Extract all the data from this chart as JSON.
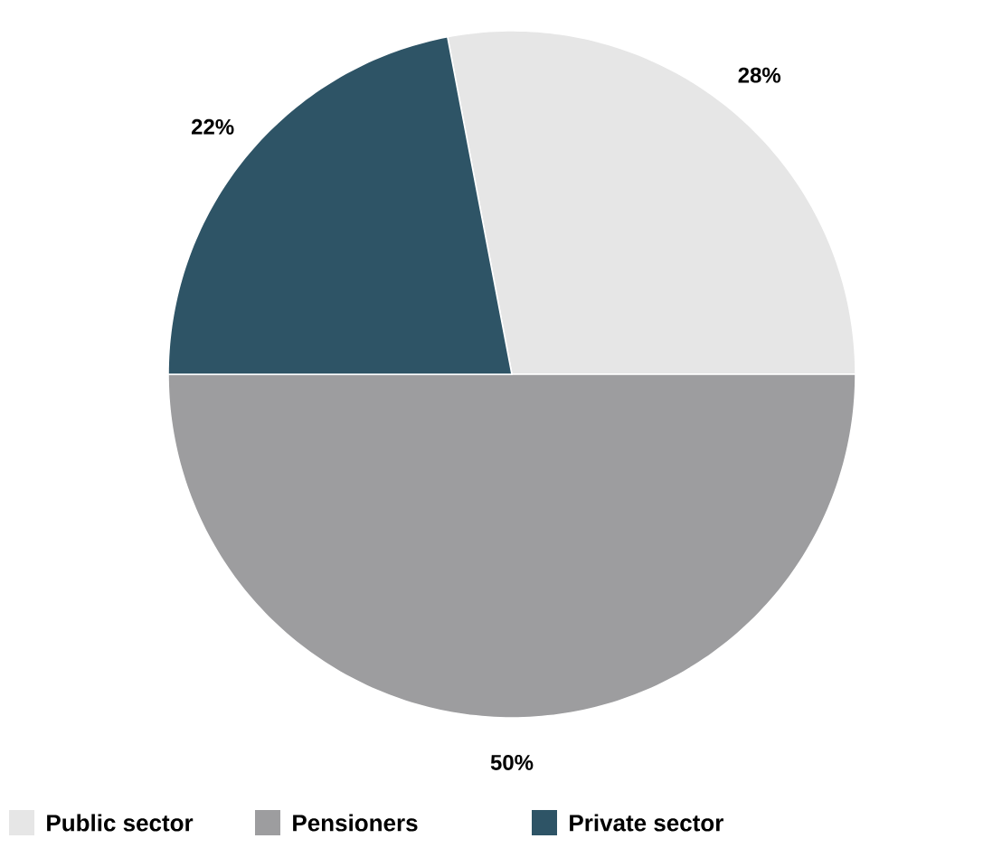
{
  "chart_data": {
    "type": "pie",
    "categories": [
      "Public sector",
      "Pensioners",
      "Private sector"
    ],
    "values": [
      28,
      50,
      22
    ],
    "colors": [
      "#e6e6e6",
      "#9d9d9f",
      "#2e5466"
    ],
    "value_labels": [
      "28%",
      "50%",
      "22%"
    ],
    "legend": "bottom"
  }
}
